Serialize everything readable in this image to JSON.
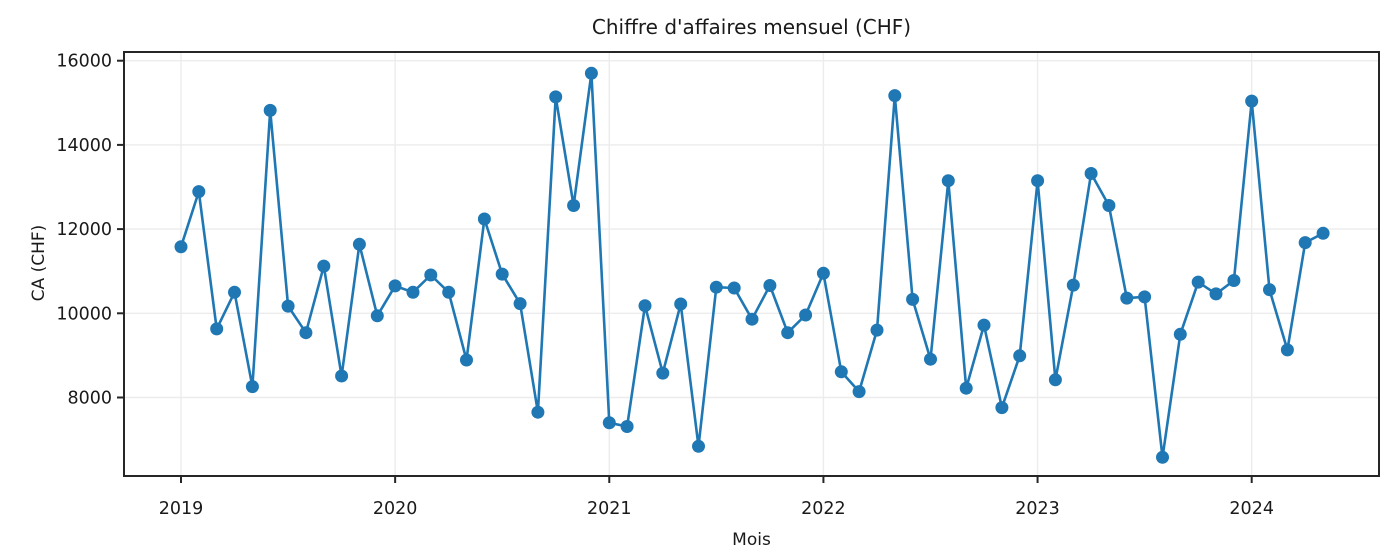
{
  "figure": {
    "title": "Chiffre d'affaires mensuel (CHF)",
    "xlabel": "Mois",
    "ylabel": "CA (CHF)"
  },
  "chart_data": {
    "type": "line",
    "title": "Chiffre d'affaires mensuel (CHF)",
    "xlabel": "Mois",
    "ylabel": "CA (CHF)",
    "line_color": "#1f77b4",
    "marker": "circle",
    "grid": true,
    "legend": "none",
    "ylim": [
      6100,
      16200
    ],
    "y_ticks": [
      16000,
      14000,
      12000,
      10000,
      8000
    ],
    "x_tick_labels": [
      "2019",
      "2020",
      "2021",
      "2022",
      "2023",
      "2024"
    ],
    "x_tick_month_index": [
      0,
      12,
      24,
      36,
      48,
      60
    ],
    "months": [
      "2019-01",
      "2019-02",
      "2019-03",
      "2019-04",
      "2019-05",
      "2019-06",
      "2019-07",
      "2019-08",
      "2019-09",
      "2019-10",
      "2019-11",
      "2019-12",
      "2020-01",
      "2020-02",
      "2020-03",
      "2020-04",
      "2020-05",
      "2020-06",
      "2020-07",
      "2020-08",
      "2020-09",
      "2020-10",
      "2020-11",
      "2020-12",
      "2021-01",
      "2021-02",
      "2021-03",
      "2021-04",
      "2021-05",
      "2021-06",
      "2021-07",
      "2021-08",
      "2021-09",
      "2021-10",
      "2021-11",
      "2021-12",
      "2022-01",
      "2022-02",
      "2022-03",
      "2022-04",
      "2022-05",
      "2022-06",
      "2022-07",
      "2022-08",
      "2022-09",
      "2022-10",
      "2022-11",
      "2022-12",
      "2023-01",
      "2023-02",
      "2023-03",
      "2023-04",
      "2023-05",
      "2023-06",
      "2023-07",
      "2023-08",
      "2023-09",
      "2023-10",
      "2023-11",
      "2023-12",
      "2024-01",
      "2024-02",
      "2024-03",
      "2024-04",
      "2024-05"
    ],
    "values": [
      11580,
      12890,
      9630,
      10500,
      8260,
      14820,
      10170,
      9540,
      11120,
      8510,
      11640,
      9940,
      10650,
      10500,
      10910,
      10500,
      8890,
      12240,
      10930,
      10230,
      7650,
      15140,
      12560,
      15700,
      7400,
      7310,
      10180,
      8580,
      10220,
      6840,
      10620,
      10600,
      9860,
      10660,
      9540,
      9960,
      10950,
      8610,
      8140,
      9600,
      15170,
      10330,
      8910,
      13150,
      8220,
      9720,
      7760,
      8990,
      13150,
      8420,
      10670,
      13320,
      12560,
      10360,
      10390,
      6580,
      9500,
      10740,
      10460,
      10780,
      15040,
      10560,
      9130,
      11680,
      11900
    ],
    "colors": {
      "grid": "#ececec",
      "spine": "#262626",
      "text": "#1a1a1a"
    }
  }
}
